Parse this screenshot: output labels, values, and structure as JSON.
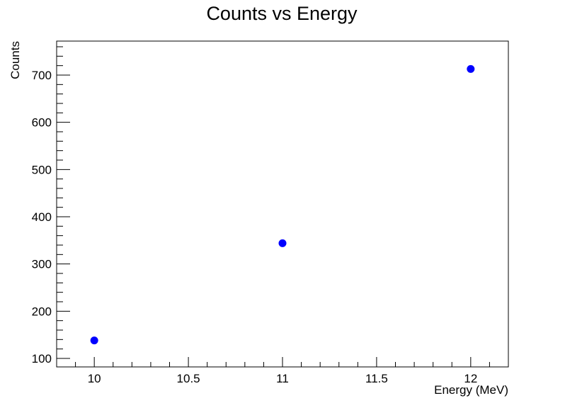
{
  "chart_data": {
    "type": "scatter",
    "title": "Counts vs Energy",
    "xlabel": "Energy (MeV)",
    "ylabel": "Counts",
    "xlim": [
      9.8,
      12.2
    ],
    "ylim": [
      82,
      772
    ],
    "xticks": [
      10,
      10.5,
      11,
      11.5,
      12
    ],
    "xtick_labels": [
      "10",
      "10.5",
      "11",
      "11.5",
      "12"
    ],
    "yticks": [
      100,
      200,
      300,
      400,
      500,
      600,
      700
    ],
    "ytick_labels": [
      "100",
      "200",
      "300",
      "400",
      "500",
      "600",
      "700"
    ],
    "grid": false,
    "legend": "none",
    "series": [
      {
        "x": [
          10,
          11,
          12
        ],
        "y": [
          138,
          344,
          713
        ],
        "color": "#0000ff",
        "marker": "circle"
      }
    ]
  }
}
